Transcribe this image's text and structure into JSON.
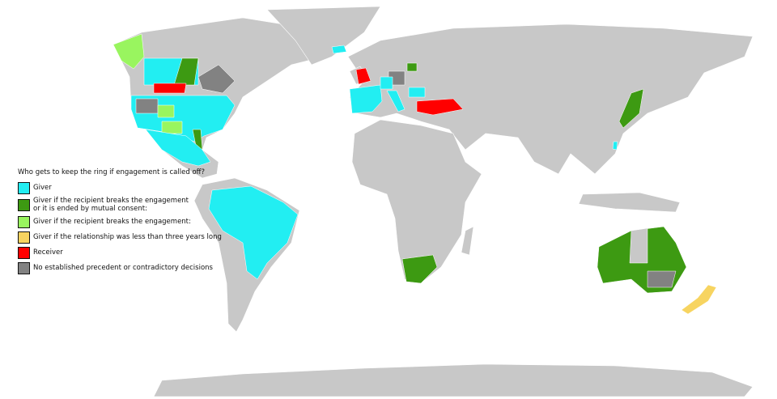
{
  "map": {
    "land_color": "#c8c8c8",
    "ocean_color": "#ffffff"
  },
  "legend": {
    "title": "Who gets to keep the ring if engagement is called off?",
    "items": [
      {
        "label": "Giver",
        "color": "#22eef2"
      },
      {
        "label": "Giver if the recipient breaks the engagement\nor it is ended by mutual consent:",
        "color": "#3d9a12"
      },
      {
        "label": "Giver if the recipient breaks the engagement:",
        "color": "#99f55f"
      },
      {
        "label": "Giver if the relationship was less than three years long",
        "color": "#f7d460"
      },
      {
        "label": "Receiver",
        "color": "#ff0000"
      },
      {
        "label": "No established precedent or contradictory decisions",
        "color": "#828282"
      }
    ]
  }
}
